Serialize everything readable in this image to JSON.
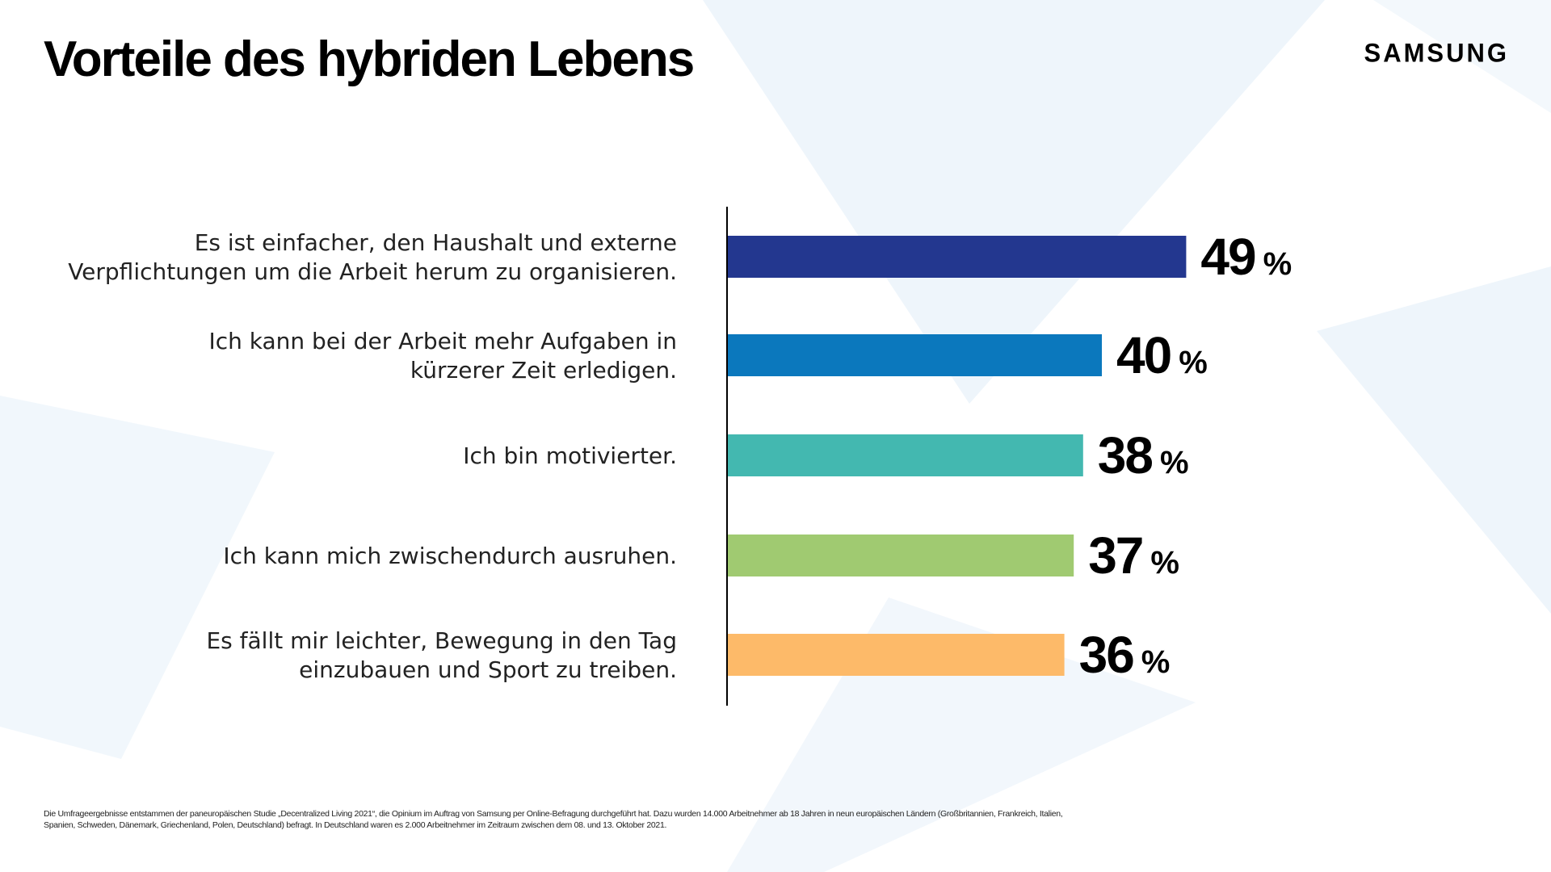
{
  "header": {
    "title": "Vorteile des hybriden Lebens",
    "logo_text": "SAMSUNG"
  },
  "chart_data": {
    "type": "bar",
    "orientation": "horizontal",
    "title": "Vorteile des hybriden Lebens",
    "categories": [
      [
        "Es ist einfacher, den Haushalt und externe",
        "Verpflichtungen um die Arbeit herum zu organisieren."
      ],
      [
        "Ich kann bei der Arbeit mehr Aufgaben in",
        "kürzerer Zeit erledigen."
      ],
      [
        "Ich bin motivierter."
      ],
      [
        "Ich kann mich zwischendurch ausruhen."
      ],
      [
        "Es fällt mir leichter, Bewegung in den Tag",
        "einzubauen und Sport zu treiben."
      ]
    ],
    "values": [
      49,
      40,
      38,
      37,
      36
    ],
    "value_labels": [
      "49",
      "40",
      "38",
      "37",
      "36"
    ],
    "unit": "%",
    "colors": [
      "#23378f",
      "#0b78bd",
      "#43b8b0",
      "#a0ca71",
      "#fdba69"
    ],
    "xlim": [
      0,
      100
    ],
    "grid": false,
    "legend": "none"
  },
  "footnote": "Die Umfrageergebnisse entstammen der paneuropäischen Studie „Decentralized Living 2021“, die Opinium im Auftrag von Samsung per Online-Befragung durchgeführt hat. Dazu wurden 14.000 Arbeitnehmer ab 18 Jahren in neun europäischen Ländern (Großbritannien, Frankreich, Italien, Spanien, Schweden, Dänemark, Griechenland, Polen, Deutschland) befragt. In Deutschland waren es 2.000 Arbeitnehmer im Zeitraum zwischen dem 08. und 13. Oktober 2021."
}
